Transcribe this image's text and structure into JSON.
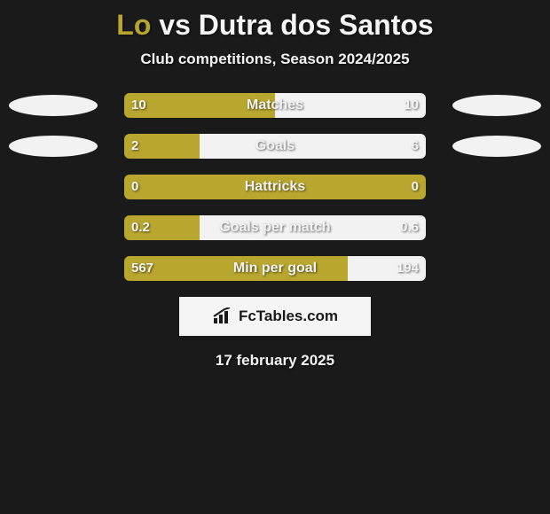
{
  "background_color": "#1a1a1a",
  "title": {
    "player1": "Lo",
    "vs": " vs ",
    "player2": "Dutra dos Santos",
    "color_player1": "#b8a62e",
    "color_vs": "#f5f5f5",
    "color_player2": "#f5f5f5",
    "fontsize": 32
  },
  "subtitle": {
    "text": "Club competitions, Season 2024/2025",
    "color": "#f2f2f2",
    "fontsize": 17
  },
  "bar": {
    "track_width": 340,
    "height": 28,
    "radius": 6,
    "left_color": "#b8a62e",
    "right_color": "#f2f2f2",
    "label_color": "#f2f2f2",
    "value_color": "#f5f5f5"
  },
  "ellipse_color": "#f2f2f2",
  "rows": [
    {
      "label": "Matches",
      "left_val": "10",
      "right_val": "10",
      "left_pct": 50,
      "right_pct": 50,
      "show_ellipse": true
    },
    {
      "label": "Goals",
      "left_val": "2",
      "right_val": "6",
      "left_pct": 25,
      "right_pct": 75,
      "show_ellipse": true
    },
    {
      "label": "Hattricks",
      "left_val": "0",
      "right_val": "0",
      "left_pct": 100,
      "right_pct": 0,
      "show_ellipse": false
    },
    {
      "label": "Goals per match",
      "left_val": "0.2",
      "right_val": "0.6",
      "left_pct": 25,
      "right_pct": 75,
      "show_ellipse": false
    },
    {
      "label": "Min per goal",
      "left_val": "567",
      "right_val": "194",
      "left_pct": 74,
      "right_pct": 26,
      "show_ellipse": false
    }
  ],
  "logo": {
    "text": "FcTables.com",
    "bg": "#f5f5f5",
    "fg": "#1a1a1a"
  },
  "date": {
    "text": "17 february 2025",
    "color": "#f2f2f2",
    "fontsize": 17
  }
}
